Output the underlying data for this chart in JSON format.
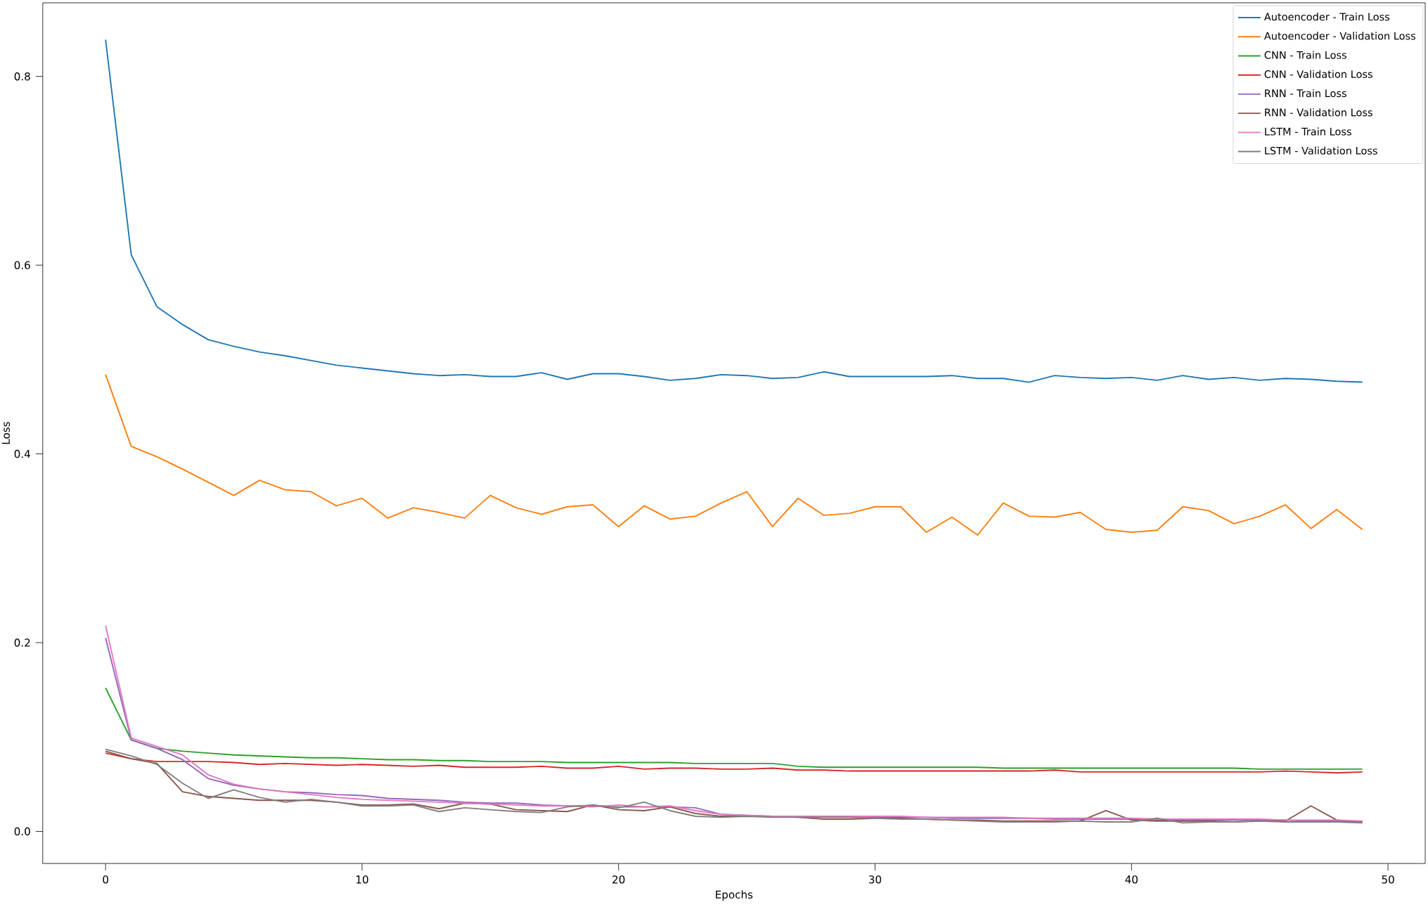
{
  "chart_data": {
    "type": "line",
    "xlabel": "Epochs",
    "ylabel": "Loss",
    "x": [
      0,
      1,
      2,
      3,
      4,
      5,
      6,
      7,
      8,
      9,
      10,
      11,
      12,
      13,
      14,
      15,
      16,
      17,
      18,
      19,
      20,
      21,
      22,
      23,
      24,
      25,
      26,
      27,
      28,
      29,
      30,
      31,
      32,
      33,
      34,
      35,
      36,
      37,
      38,
      39,
      40,
      41,
      42,
      43,
      44,
      45,
      46,
      47,
      48,
      49
    ],
    "xlim": [
      -2.45,
      51.45
    ],
    "ylim": [
      -0.034,
      0.878
    ],
    "xticks": [
      0,
      10,
      20,
      30,
      40,
      50
    ],
    "yticks": [
      {
        "value": 0,
        "label": "0.0"
      },
      0.2,
      0.4,
      0.6,
      0.8
    ],
    "legend": "top right",
    "grid": false,
    "series": [
      {
        "name": "Autoencoder - Train Loss",
        "color": "#1f77b4",
        "values": [
          0.839,
          0.611,
          0.556,
          0.537,
          0.521,
          0.514,
          0.508,
          0.504,
          0.499,
          0.494,
          0.491,
          0.488,
          0.485,
          0.483,
          0.484,
          0.482,
          0.482,
          0.486,
          0.479,
          0.485,
          0.485,
          0.482,
          0.478,
          0.48,
          0.484,
          0.483,
          0.48,
          0.481,
          0.487,
          0.482,
          0.482,
          0.482,
          0.482,
          0.483,
          0.48,
          0.48,
          0.476,
          0.483,
          0.481,
          0.48,
          0.481,
          0.478,
          0.483,
          0.479,
          0.481,
          0.478,
          0.48,
          0.479,
          0.477,
          0.476
        ]
      },
      {
        "name": "Autoencoder - Validation Loss",
        "color": "#ff7f0e",
        "values": [
          0.484,
          0.408,
          0.397,
          0.384,
          0.37,
          0.356,
          0.372,
          0.362,
          0.36,
          0.345,
          0.353,
          0.332,
          0.343,
          0.338,
          0.332,
          0.356,
          0.343,
          0.336,
          0.344,
          0.346,
          0.323,
          0.345,
          0.331,
          0.334,
          0.348,
          0.36,
          0.323,
          0.353,
          0.335,
          0.337,
          0.344,
          0.344,
          0.317,
          0.333,
          0.314,
          0.348,
          0.334,
          0.333,
          0.338,
          0.32,
          0.317,
          0.319,
          0.344,
          0.34,
          0.326,
          0.334,
          0.346,
          0.321,
          0.341,
          0.32
        ]
      },
      {
        "name": "CNN - Train Loss",
        "color": "#2ca02c",
        "values": [
          0.152,
          0.097,
          0.088,
          0.085,
          0.083,
          0.081,
          0.08,
          0.079,
          0.078,
          0.078,
          0.077,
          0.076,
          0.076,
          0.075,
          0.075,
          0.074,
          0.074,
          0.074,
          0.073,
          0.073,
          0.073,
          0.073,
          0.073,
          0.072,
          0.072,
          0.072,
          0.072,
          0.069,
          0.068,
          0.068,
          0.068,
          0.068,
          0.068,
          0.068,
          0.068,
          0.067,
          0.067,
          0.067,
          0.067,
          0.067,
          0.067,
          0.067,
          0.067,
          0.067,
          0.067,
          0.066,
          0.066,
          0.066,
          0.066,
          0.066
        ]
      },
      {
        "name": "CNN - Validation Loss",
        "color": "#d62728",
        "values": [
          0.083,
          0.077,
          0.074,
          0.074,
          0.074,
          0.073,
          0.071,
          0.072,
          0.071,
          0.07,
          0.071,
          0.07,
          0.069,
          0.07,
          0.068,
          0.068,
          0.068,
          0.069,
          0.067,
          0.067,
          0.069,
          0.066,
          0.067,
          0.067,
          0.066,
          0.066,
          0.067,
          0.065,
          0.065,
          0.064,
          0.064,
          0.064,
          0.064,
          0.064,
          0.064,
          0.064,
          0.064,
          0.065,
          0.063,
          0.063,
          0.063,
          0.063,
          0.063,
          0.063,
          0.063,
          0.063,
          0.064,
          0.063,
          0.062,
          0.063
        ]
      },
      {
        "name": "RNN - Train Loss",
        "color": "#9467bd",
        "values": [
          0.205,
          0.097,
          0.088,
          0.076,
          0.056,
          0.049,
          0.045,
          0.042,
          0.041,
          0.039,
          0.038,
          0.035,
          0.034,
          0.033,
          0.031,
          0.03,
          0.03,
          0.028,
          0.027,
          0.027,
          0.026,
          0.026,
          0.026,
          0.025,
          0.018,
          0.017,
          0.016,
          0.016,
          0.016,
          0.016,
          0.015,
          0.015,
          0.015,
          0.014,
          0.014,
          0.014,
          0.014,
          0.013,
          0.013,
          0.013,
          0.013,
          0.012,
          0.012,
          0.012,
          0.012,
          0.012,
          0.012,
          0.011,
          0.011,
          0.01
        ]
      },
      {
        "name": "RNN - Validation Loss",
        "color": "#8c564b",
        "values": [
          0.085,
          0.077,
          0.072,
          0.042,
          0.037,
          0.035,
          0.033,
          0.033,
          0.033,
          0.031,
          0.028,
          0.028,
          0.029,
          0.024,
          0.03,
          0.029,
          0.023,
          0.022,
          0.021,
          0.028,
          0.023,
          0.022,
          0.026,
          0.019,
          0.016,
          0.016,
          0.016,
          0.015,
          0.013,
          0.013,
          0.014,
          0.014,
          0.013,
          0.012,
          0.012,
          0.011,
          0.011,
          0.011,
          0.011,
          0.022,
          0.012,
          0.011,
          0.011,
          0.011,
          0.01,
          0.011,
          0.011,
          0.027,
          0.012,
          0.01
        ]
      },
      {
        "name": "LSTM - Train Loss",
        "color": "#e377c2",
        "values": [
          0.218,
          0.099,
          0.09,
          0.081,
          0.06,
          0.05,
          0.045,
          0.042,
          0.039,
          0.036,
          0.034,
          0.033,
          0.032,
          0.031,
          0.03,
          0.029,
          0.028,
          0.027,
          0.027,
          0.026,
          0.028,
          0.026,
          0.027,
          0.022,
          0.018,
          0.017,
          0.016,
          0.016,
          0.016,
          0.016,
          0.016,
          0.016,
          0.015,
          0.015,
          0.015,
          0.015,
          0.014,
          0.014,
          0.014,
          0.014,
          0.014,
          0.013,
          0.013,
          0.013,
          0.013,
          0.013,
          0.012,
          0.012,
          0.012,
          0.011
        ]
      },
      {
        "name": "LSTM - Validation Loss",
        "color": "#7f7f7f",
        "values": [
          0.087,
          0.08,
          0.071,
          0.051,
          0.035,
          0.044,
          0.036,
          0.031,
          0.034,
          0.031,
          0.027,
          0.027,
          0.028,
          0.021,
          0.025,
          0.023,
          0.021,
          0.02,
          0.026,
          0.028,
          0.025,
          0.031,
          0.022,
          0.016,
          0.015,
          0.016,
          0.015,
          0.015,
          0.015,
          0.015,
          0.014,
          0.013,
          0.013,
          0.012,
          0.011,
          0.01,
          0.01,
          0.01,
          0.011,
          0.01,
          0.01,
          0.014,
          0.009,
          0.01,
          0.01,
          0.011,
          0.01,
          0.01,
          0.01,
          0.009
        ]
      }
    ]
  }
}
